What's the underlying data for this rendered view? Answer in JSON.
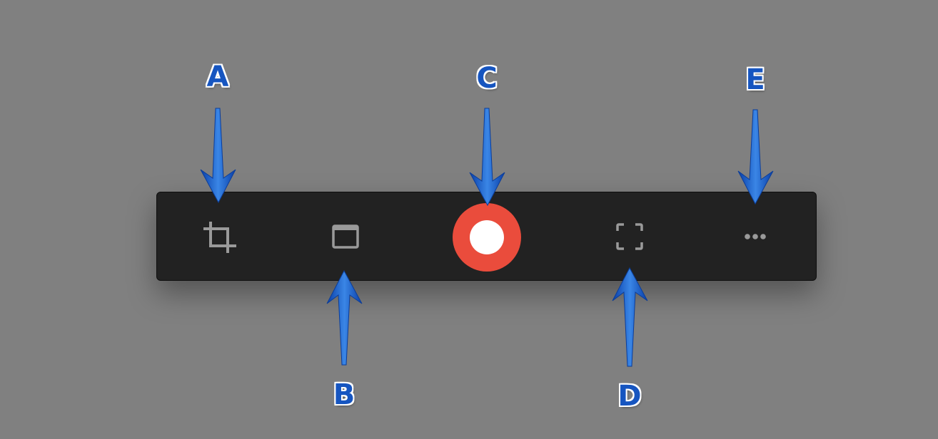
{
  "toolbar": {
    "tools": [
      {
        "id": "crop",
        "icon": "crop-icon"
      },
      {
        "id": "window",
        "icon": "window-icon"
      },
      {
        "id": "record",
        "icon": "record-icon"
      },
      {
        "id": "fullscreen",
        "icon": "fullscreen-icon"
      },
      {
        "id": "more",
        "icon": "more-icon"
      }
    ]
  },
  "annotations": {
    "a": "A",
    "b": "B",
    "c": "C",
    "d": "D",
    "e": "E"
  },
  "colors": {
    "background": "#808080",
    "toolbar": "#222222",
    "icon": "#9a9a9a",
    "record": "#ea4c3c",
    "annotation": "#1655c0"
  }
}
